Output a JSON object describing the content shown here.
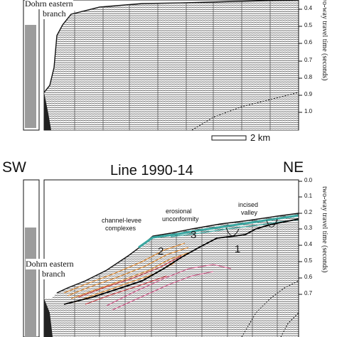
{
  "top_panel": {
    "branch_label_line1": "Dohrn eastern",
    "branch_label_line2": "branch",
    "axis_title": "two-way travel time (seconds)",
    "ticks": [
      "0.4",
      "0.5",
      "0.6",
      "0.7",
      "0.8",
      "0.9",
      "1.0"
    ],
    "scale_bar_label": "2 km"
  },
  "bottom_panel": {
    "left_direction": "SW",
    "right_direction": "NE",
    "title": "Line 1990-14",
    "axis_title": "two-way travel time (seconds)",
    "ticks": [
      "0.0",
      "0.1",
      "0.2",
      "0.3",
      "0.4",
      "0.5",
      "0.6",
      "0.7"
    ],
    "annotations": {
      "channel_levee_1": "channel-levee",
      "channel_levee_2": "complexes",
      "erosional_1": "erosional",
      "erosional_2": "unconformity",
      "incised_1": "incised",
      "incised_2": "valley",
      "branch_1": "Dohrn eastern",
      "branch_2": "branch",
      "unit_1": "1",
      "unit_2": "2",
      "unit_3": "3"
    }
  },
  "colors": {
    "seismic_ink": "#2a2a2a",
    "horizon_black": "#000000",
    "horizon_teal": "#3aa6a0",
    "horizon_orange": "#e0872b",
    "horizon_red": "#c8343a",
    "horizon_pink": "#d65a8c"
  }
}
